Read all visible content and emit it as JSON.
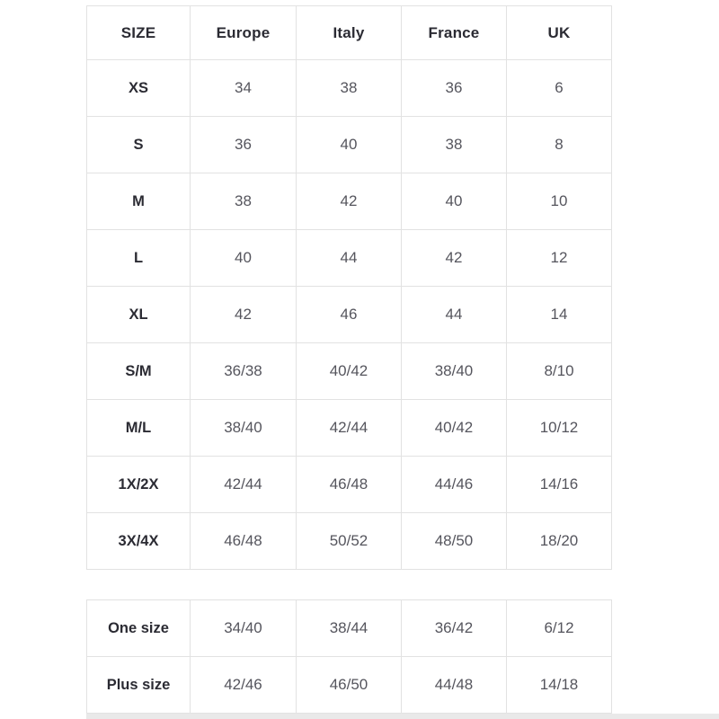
{
  "size_chart": {
    "headers": [
      "SIZE",
      "Europe",
      "Italy",
      "France",
      "UK"
    ],
    "rows": [
      [
        "XS",
        "34",
        "38",
        "36",
        "6"
      ],
      [
        "S",
        "36",
        "40",
        "38",
        "8"
      ],
      [
        "M",
        "38",
        "42",
        "40",
        "10"
      ],
      [
        "L",
        "40",
        "44",
        "42",
        "12"
      ],
      [
        "XL",
        "42",
        "46",
        "44",
        "14"
      ],
      [
        "S/M",
        "36/38",
        "40/42",
        "38/40",
        "8/10"
      ],
      [
        "M/L",
        "38/40",
        "42/44",
        "40/42",
        "10/12"
      ],
      [
        "1X/2X",
        "42/44",
        "46/48",
        "44/46",
        "14/16"
      ],
      [
        "3X/4X",
        "46/48",
        "50/52",
        "48/50",
        "18/20"
      ]
    ]
  },
  "special_sizes": {
    "rows": [
      [
        "One size",
        "34/40",
        "38/44",
        "36/42",
        "6/12"
      ],
      [
        "Plus size",
        "42/46",
        "46/50",
        "44/48",
        "14/18"
      ]
    ]
  },
  "colors": {
    "header_text": "#2b2b33",
    "value_text": "#55555d",
    "table_border": "#e2e2e2",
    "bottom_divider": "#e9e9e9",
    "background": "#ffffff"
  }
}
